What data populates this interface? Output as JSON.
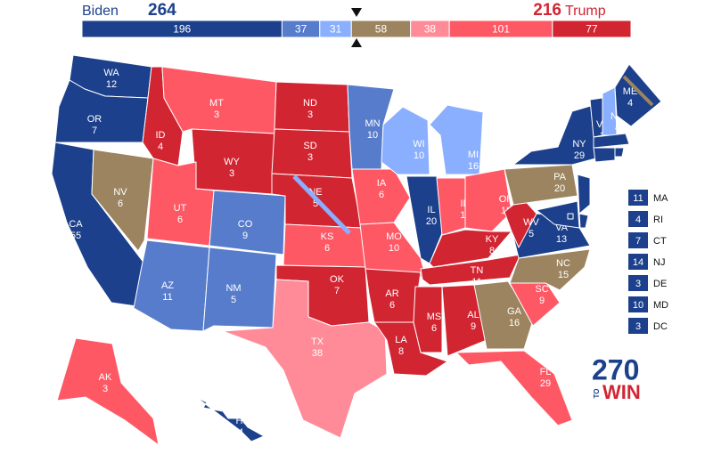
{
  "header": {
    "biden_label": "Biden",
    "biden_votes": "264",
    "trump_votes": "216",
    "trump_label": "Trump"
  },
  "bar": [
    {
      "value": 196,
      "color": "#1c408c"
    },
    {
      "value": 37,
      "color": "#577ccc"
    },
    {
      "value": 31,
      "color": "#8aafff"
    },
    {
      "value": 58,
      "color": "#9c8460"
    },
    {
      "value": 38,
      "color": "#ff8b98"
    },
    {
      "value": 101,
      "color": "#ff5865"
    },
    {
      "value": 77,
      "color": "#d22532"
    }
  ],
  "states": [
    {
      "abbr": "WA",
      "ev": 12,
      "color": "#1c408c"
    },
    {
      "abbr": "OR",
      "ev": 7,
      "color": "#1c408c"
    },
    {
      "abbr": "CA",
      "ev": 55,
      "color": "#1c408c"
    },
    {
      "abbr": "NV",
      "ev": 6,
      "color": "#9c8460"
    },
    {
      "abbr": "ID",
      "ev": 4,
      "color": "#d22532"
    },
    {
      "abbr": "MT",
      "ev": 3,
      "color": "#ff5865"
    },
    {
      "abbr": "WY",
      "ev": 3,
      "color": "#d22532"
    },
    {
      "abbr": "UT",
      "ev": 6,
      "color": "#ff5865"
    },
    {
      "abbr": "CO",
      "ev": 9,
      "color": "#577ccc"
    },
    {
      "abbr": "AZ",
      "ev": 11,
      "color": "#577ccc"
    },
    {
      "abbr": "NM",
      "ev": 5,
      "color": "#577ccc"
    },
    {
      "abbr": "ND",
      "ev": 3,
      "color": "#d22532"
    },
    {
      "abbr": "SD",
      "ev": 3,
      "color": "#d22532"
    },
    {
      "abbr": "NE",
      "ev": 5,
      "color": "#d22532"
    },
    {
      "abbr": "KS",
      "ev": 6,
      "color": "#ff5865"
    },
    {
      "abbr": "OK",
      "ev": 7,
      "color": "#d22532"
    },
    {
      "abbr": "TX",
      "ev": 38,
      "color": "#ff8b98"
    },
    {
      "abbr": "MN",
      "ev": 10,
      "color": "#577ccc"
    },
    {
      "abbr": "IA",
      "ev": 6,
      "color": "#ff5865"
    },
    {
      "abbr": "MO",
      "ev": 10,
      "color": "#ff5865"
    },
    {
      "abbr": "AR",
      "ev": 6,
      "color": "#d22532"
    },
    {
      "abbr": "LA",
      "ev": 8,
      "color": "#d22532"
    },
    {
      "abbr": "WI",
      "ev": 10,
      "color": "#8aafff"
    },
    {
      "abbr": "IL",
      "ev": 20,
      "color": "#1c408c"
    },
    {
      "abbr": "MI",
      "ev": 16,
      "color": "#8aafff"
    },
    {
      "abbr": "IN",
      "ev": 11,
      "color": "#ff5865"
    },
    {
      "abbr": "OH",
      "ev": 18,
      "color": "#ff5865"
    },
    {
      "abbr": "KY",
      "ev": 8,
      "color": "#d22532"
    },
    {
      "abbr": "TN",
      "ev": 11,
      "color": "#d22532"
    },
    {
      "abbr": "MS",
      "ev": 6,
      "color": "#d22532"
    },
    {
      "abbr": "AL",
      "ev": 9,
      "color": "#d22532"
    },
    {
      "abbr": "GA",
      "ev": 16,
      "color": "#9c8460"
    },
    {
      "abbr": "FL",
      "ev": 29,
      "color": "#ff5865"
    },
    {
      "abbr": "SC",
      "ev": 9,
      "color": "#ff5865"
    },
    {
      "abbr": "NC",
      "ev": 15,
      "color": "#9c8460"
    },
    {
      "abbr": "VA",
      "ev": 13,
      "color": "#1c408c"
    },
    {
      "abbr": "WV",
      "ev": 5,
      "color": "#d22532"
    },
    {
      "abbr": "PA",
      "ev": 20,
      "color": "#9c8460"
    },
    {
      "abbr": "NY",
      "ev": 29,
      "color": "#1c408c"
    },
    {
      "abbr": "VT",
      "ev": 3,
      "color": "#1c408c"
    },
    {
      "abbr": "NH",
      "ev": 4,
      "color": "#8aafff"
    },
    {
      "abbr": "ME",
      "ev": 4,
      "color": "#1c408c"
    },
    {
      "abbr": "AK",
      "ev": 3,
      "color": "#ff5865"
    },
    {
      "abbr": "HI",
      "ev": 4,
      "color": "#1c408c"
    },
    {
      "abbr": "MA",
      "ev": 11,
      "color": "#1c408c"
    },
    {
      "abbr": "RI",
      "ev": 4,
      "color": "#1c408c"
    },
    {
      "abbr": "CT",
      "ev": 7,
      "color": "#1c408c"
    },
    {
      "abbr": "NJ",
      "ev": 14,
      "color": "#1c408c"
    },
    {
      "abbr": "DE",
      "ev": 3,
      "color": "#1c408c"
    },
    {
      "abbr": "MD",
      "ev": 10,
      "color": "#1c408c"
    },
    {
      "abbr": "DC",
      "ev": 3,
      "color": "#1c408c"
    }
  ],
  "logo": {
    "number": "270",
    "to": "TO",
    "win": "WIN"
  }
}
